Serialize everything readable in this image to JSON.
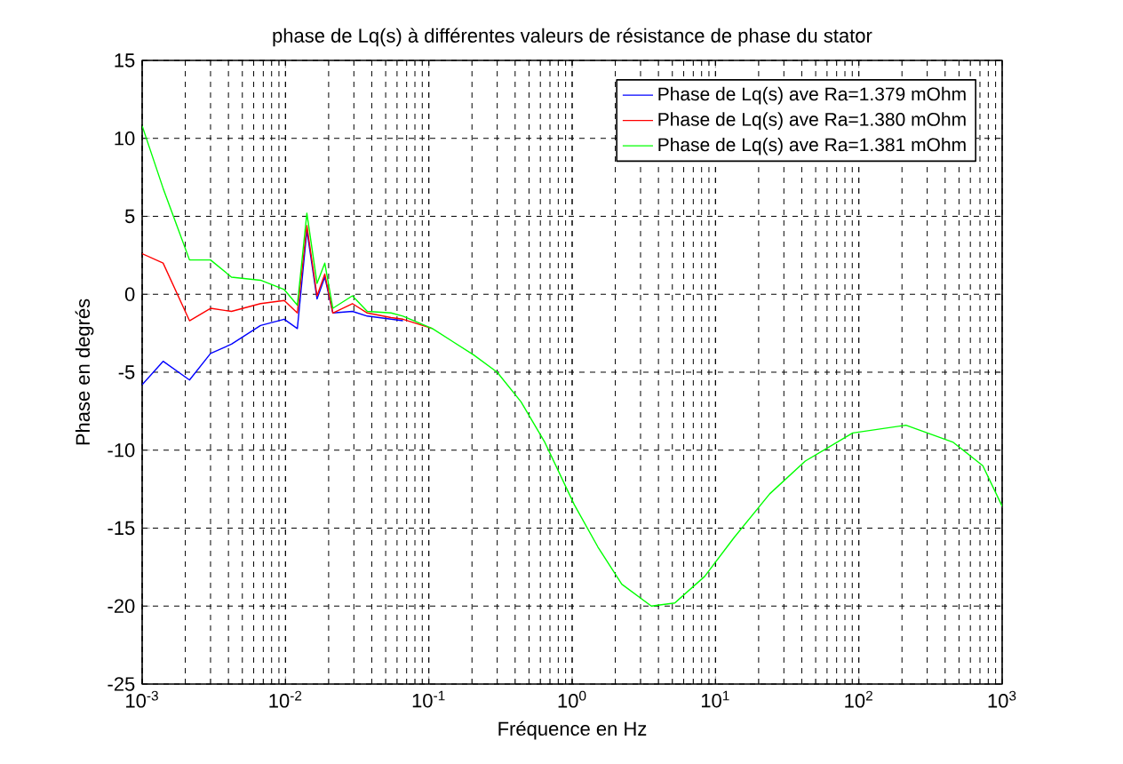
{
  "chart_data": {
    "type": "line",
    "title": "phase de Lq(s) à différentes valeurs de résistance de phase du stator",
    "xlabel": "Fréquence en Hz",
    "ylabel": "Phase en degrés",
    "log": "x",
    "grid": true,
    "legend": "top right",
    "line_style": "solid",
    "marker": "none",
    "x": [
      0.001,
      0.0014,
      0.00214,
      0.003,
      0.0042,
      0.0067,
      0.0098,
      0.0121,
      0.0141,
      0.0166,
      0.0188,
      0.0214,
      0.0293,
      0.0372,
      0.0545,
      0.066,
      0.106,
      0.206,
      0.3,
      0.44,
      0.645,
      1.035,
      1.51,
      2.22,
      3.57,
      5.2,
      8.4,
      13.5,
      23.9,
      42.3,
      90.6,
      213,
      456,
      733,
      1000
    ],
    "series": [
      {
        "name": "Phase de Lq(s) ave Ra=1.379 mOhm",
        "color": "#0000ff",
        "values": [
          -5.8,
          -4.3,
          -5.5,
          -3.8,
          -3.2,
          -2.0,
          -1.6,
          -2.2,
          4.1,
          -0.3,
          1.1,
          -1.2,
          -1.1,
          -1.4,
          -1.6,
          -1.7,
          null,
          null,
          null,
          null,
          null,
          null,
          null,
          null,
          null,
          null,
          null,
          null,
          null,
          null,
          null,
          null,
          null,
          null,
          null
        ]
      },
      {
        "name": "Phase de Lq(s) ave Ra=1.380 mOhm",
        "color": "#ff0000",
        "values": [
          2.6,
          2.0,
          -1.7,
          -0.9,
          -1.1,
          -0.6,
          -0.4,
          -1.2,
          4.4,
          -0.1,
          1.3,
          -1.2,
          -0.6,
          -1.2,
          -1.5,
          -1.6,
          -2.2,
          null,
          null,
          null,
          null,
          null,
          null,
          null,
          null,
          null,
          null,
          null,
          null,
          null,
          null,
          null,
          null,
          null,
          null
        ]
      },
      {
        "name": "Phase de Lq(s) ave Ra=1.381 mOhm",
        "color": "#00ff00",
        "values": [
          10.8,
          6.8,
          2.2,
          2.2,
          1.1,
          0.9,
          0.3,
          -0.7,
          5.2,
          0.7,
          2.0,
          -0.9,
          -0.1,
          -1.1,
          -1.2,
          -1.4,
          -2.2,
          -3.9,
          -5.0,
          -6.9,
          -9.5,
          -13.5,
          -16.2,
          -18.6,
          -20.0,
          -19.8,
          -18.1,
          -15.6,
          -12.8,
          -10.7,
          -8.9,
          -8.4,
          -9.5,
          -11.0,
          -13.6
        ]
      }
    ],
    "xlim": [
      0.001,
      1000
    ],
    "ylim": [
      -25,
      15
    ],
    "xticks": [
      {
        "value": 0.001,
        "label": "10$^{-3}$"
      },
      {
        "value": 0.01,
        "label": "10$^{-2}$"
      },
      {
        "value": 0.1,
        "label": "10$^{-1}$"
      },
      {
        "value": 1,
        "label": "10$^{0}$"
      },
      {
        "value": 10,
        "label": "10$^{1}$"
      },
      {
        "value": 100,
        "label": "10$^{2}$"
      },
      {
        "value": 1000,
        "label": "10$^{3}$"
      }
    ],
    "yticks": [
      -25,
      -20,
      -15,
      -10,
      -5,
      0,
      5,
      10,
      15
    ]
  }
}
